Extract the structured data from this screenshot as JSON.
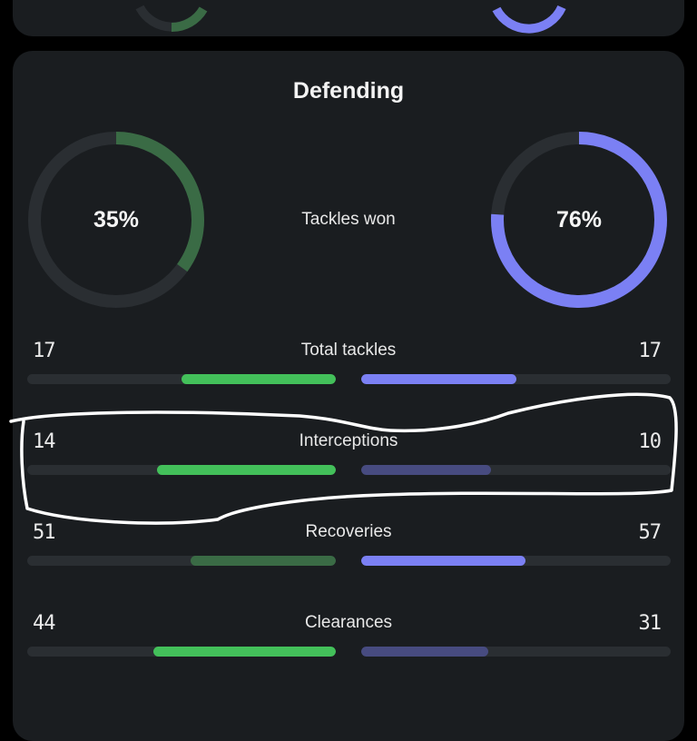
{
  "colors": {
    "home_strong": "#43c05a",
    "home_weak": "#3a6b45",
    "away_strong": "#7b80f4",
    "away_weak": "#474b80",
    "track": "#2a2e32"
  },
  "section": {
    "title": "Defending",
    "tackles_won": {
      "label": "Tackles won",
      "home": "35%",
      "away": "76%",
      "home_value": 35,
      "away_value": 76
    },
    "stats": [
      {
        "label": "Total tackles",
        "home": "17",
        "away": "17",
        "home_fill": 50,
        "away_fill": 50,
        "home_strong": true,
        "away_strong": true
      },
      {
        "label": "Interceptions",
        "home": "14",
        "away": "10",
        "home_fill": 58,
        "away_fill": 42,
        "home_strong": true,
        "away_strong": false
      },
      {
        "label": "Recoveries",
        "home": "51",
        "away": "57",
        "home_fill": 47,
        "away_fill": 53,
        "home_strong": false,
        "away_strong": true
      },
      {
        "label": "Clearances",
        "home": "44",
        "away": "31",
        "home_fill": 59,
        "away_fill": 41,
        "home_strong": true,
        "away_strong": false
      }
    ]
  }
}
